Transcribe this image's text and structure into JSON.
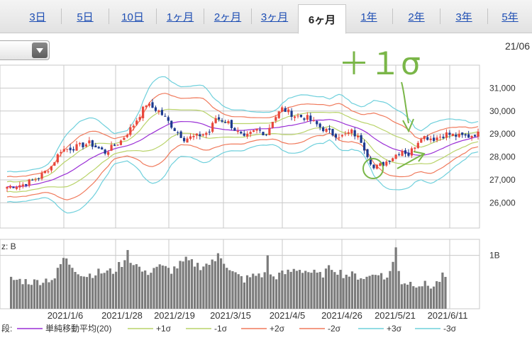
{
  "tabs": [
    {
      "label": "3日",
      "active": false
    },
    {
      "label": "5日",
      "active": false
    },
    {
      "label": "10日",
      "active": false
    },
    {
      "label": "1ヶ月",
      "active": false
    },
    {
      "label": "2ヶ月",
      "active": false
    },
    {
      "label": "3ヶ月",
      "active": false
    },
    {
      "label": "6ヶ月",
      "active": true
    },
    {
      "label": "1年",
      "active": false
    },
    {
      "label": "2年",
      "active": false
    },
    {
      "label": "3年",
      "active": false
    },
    {
      "label": "5年",
      "active": false
    }
  ],
  "top_right_date": "21/06",
  "annotation": {
    "text": "＋１σ",
    "color": "#7ab648"
  },
  "volume_label": "z: B",
  "legend_prefix": "段:",
  "colors": {
    "up": "#e8473c",
    "down": "#1d3a8f",
    "ma": "#9a2fd6",
    "s1": "#b9d36a",
    "s2": "#f07a5c",
    "s3": "#6fd0dc",
    "volume": "#7b7b7b",
    "grid": "#c8c8c8"
  },
  "chart_data": {
    "type": "candlestick",
    "y_ticks": [
      "31,000",
      "30,000",
      "29,000",
      "28,000",
      "27,000",
      "26,000"
    ],
    "y_tick_values": [
      31000,
      30000,
      29000,
      28000,
      27000,
      26000
    ],
    "ylim": [
      24900,
      32000
    ],
    "x_tick_labels": [
      "2021/1/6",
      "2021/1/28",
      "2021/2/19",
      "2021/3/15",
      "2021/4/5",
      "2021/4/26",
      "2021/5/21",
      "2021/6/11"
    ],
    "volume_ticks": [
      "1B"
    ],
    "volume_tick_values": [
      1.0
    ],
    "volume_ylim": [
      0,
      1.3
    ],
    "legend": [
      {
        "label": "単純移動平均(20)",
        "color": "#9a2fd6"
      },
      {
        "label": "+1σ",
        "color": "#b9d36a"
      },
      {
        "label": "-1σ",
        "color": "#b9d36a"
      },
      {
        "label": "+2σ",
        "color": "#f07a5c"
      },
      {
        "label": "-2σ",
        "color": "#f07a5c"
      },
      {
        "label": "+3σ",
        "color": "#6fd0dc"
      },
      {
        "label": "-3σ",
        "color": "#6fd0dc"
      }
    ],
    "close_anchors": [
      [
        0,
        26700
      ],
      [
        5,
        26800
      ],
      [
        10,
        27100
      ],
      [
        14,
        27600
      ],
      [
        17,
        28300
      ],
      [
        21,
        28400
      ],
      [
        26,
        28600
      ],
      [
        31,
        28200
      ],
      [
        36,
        28700
      ],
      [
        40,
        29400
      ],
      [
        44,
        30300
      ],
      [
        48,
        30000
      ],
      [
        50,
        29700
      ],
      [
        53,
        29200
      ],
      [
        56,
        28800
      ],
      [
        60,
        28900
      ],
      [
        64,
        29100
      ],
      [
        66,
        29700
      ],
      [
        70,
        29500
      ],
      [
        72,
        29200
      ],
      [
        75,
        28800
      ],
      [
        79,
        29200
      ],
      [
        82,
        29000
      ],
      [
        84,
        29600
      ],
      [
        87,
        30100
      ],
      [
        91,
        29800
      ],
      [
        95,
        29700
      ],
      [
        99,
        29300
      ],
      [
        103,
        29000
      ],
      [
        106,
        28900
      ],
      [
        109,
        29100
      ],
      [
        112,
        28700
      ],
      [
        114,
        28100
      ],
      [
        116,
        27500
      ],
      [
        119,
        27700
      ],
      [
        122,
        28000
      ],
      [
        125,
        28300
      ],
      [
        127,
        28100
      ],
      [
        131,
        28900
      ],
      [
        135,
        28800
      ],
      [
        139,
        29000
      ],
      [
        143,
        28900
      ],
      [
        146,
        28900
      ],
      [
        148,
        29000
      ]
    ],
    "volume_anchors": [
      [
        0,
        0.55
      ],
      [
        8,
        0.5
      ],
      [
        15,
        0.58
      ],
      [
        18,
        0.95
      ],
      [
        22,
        0.75
      ],
      [
        25,
        0.62
      ],
      [
        30,
        0.68
      ],
      [
        35,
        0.7
      ],
      [
        38,
        0.85
      ],
      [
        42,
        0.88
      ],
      [
        46,
        0.65
      ],
      [
        50,
        0.8
      ],
      [
        55,
        0.72
      ],
      [
        60,
        0.9
      ],
      [
        65,
        0.8
      ],
      [
        70,
        0.88
      ],
      [
        72,
        1.0
      ],
      [
        75,
        0.7
      ],
      [
        80,
        0.55
      ],
      [
        85,
        0.65
      ],
      [
        90,
        0.6
      ],
      [
        95,
        0.68
      ],
      [
        98,
        0.75
      ],
      [
        102,
        0.7
      ],
      [
        106,
        0.62
      ],
      [
        110,
        0.78
      ],
      [
        114,
        0.65
      ],
      [
        118,
        0.62
      ],
      [
        122,
        0.58
      ],
      [
        126,
        0.7
      ],
      [
        128,
        0.55
      ],
      [
        130,
        0.7
      ],
      [
        132,
        1.0
      ],
      [
        134,
        0.5
      ],
      [
        138,
        0.48
      ],
      [
        142,
        0.45
      ],
      [
        145,
        0.42
      ],
      [
        148,
        0.6
      ]
    ],
    "volume_spikes": [
      [
        40,
        1.1
      ],
      [
        71,
        1.04
      ],
      [
        88,
        1.0
      ],
      [
        132,
        1.15
      ]
    ]
  }
}
